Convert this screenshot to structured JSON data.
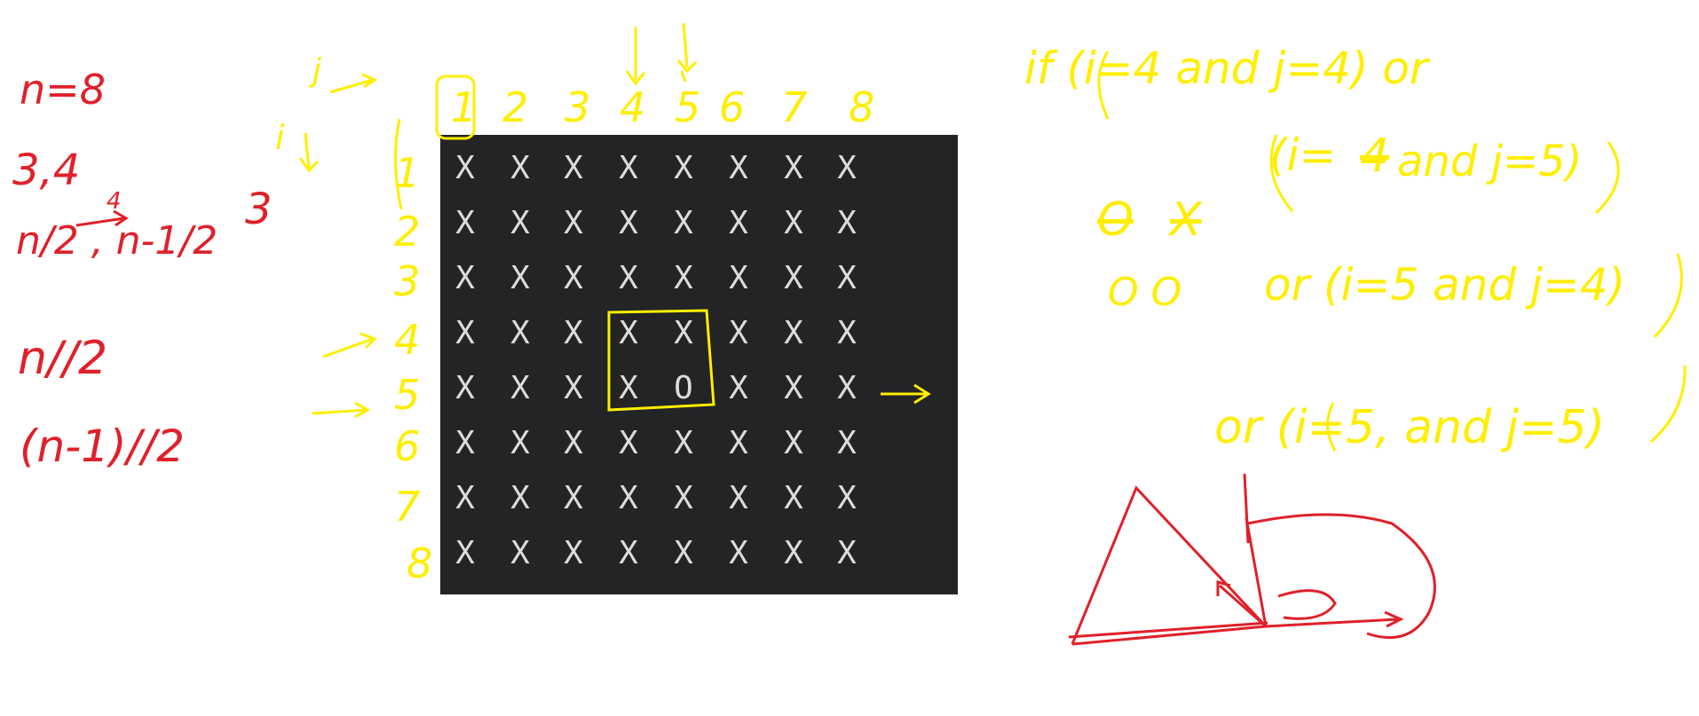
{
  "colors": {
    "background": "#ffffff",
    "terminal_bg": "#232426",
    "cell_text": "#dcdcdc",
    "red_ink": "#e0202a",
    "yellow_ink": "#ffee00"
  },
  "red_notes": {
    "line1": "n=8",
    "line2": "3,4",
    "line3": "n/2 , n-1/2",
    "line3_sup1": "4",
    "line3_sup2": "3",
    "line4": "n//2",
    "line5": "(n-1)//2"
  },
  "yellow_labels": {
    "j_label": "j",
    "i_label": "i",
    "col_numbers": [
      "1",
      "2",
      "3",
      "4",
      "5",
      "6",
      "7",
      "8"
    ],
    "row_numbers": [
      "1",
      "2",
      "3",
      "4",
      "5",
      "6",
      "7",
      "8"
    ]
  },
  "grid": {
    "rows": [
      [
        "X",
        "X",
        "X",
        "X",
        "X",
        "X",
        "X",
        "X"
      ],
      [
        "X",
        "X",
        "X",
        "X",
        "X",
        "X",
        "X",
        "X"
      ],
      [
        "X",
        "X",
        "X",
        "X",
        "X",
        "X",
        "X",
        "X"
      ],
      [
        "X",
        "X",
        "X",
        "X",
        "X",
        "X",
        "X",
        "X"
      ],
      [
        "X",
        "X",
        "X",
        "X",
        "O",
        "X",
        "X",
        "X"
      ],
      [
        "X",
        "X",
        "X",
        "X",
        "X",
        "X",
        "X",
        "X"
      ],
      [
        "X",
        "X",
        "X",
        "X",
        "X",
        "X",
        "X",
        "X"
      ],
      [
        "X",
        "X",
        "X",
        "X",
        "X",
        "X",
        "X",
        "X"
      ]
    ]
  },
  "condition_notes": {
    "line1": "if (i=4 and j=4) or",
    "line2_start": "(i=",
    "line2_struck": "4",
    "line2_end": "and j=5)",
    "line3_struck_a": "O",
    "line3_struck_b": "X",
    "line4_symbols": "O O",
    "line4_text": "or (i=5 and j=4)",
    "line5": "or (i=5, and j=5)"
  }
}
